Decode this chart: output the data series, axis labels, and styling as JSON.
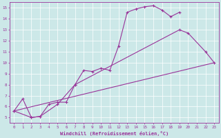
{
  "xlabel": "Windchill (Refroidissement éolien,°C)",
  "background_color": "#cce8e8",
  "line_color": "#993399",
  "grid_color": "#ffffff",
  "xlim": [
    -0.5,
    23.5
  ],
  "ylim": [
    4.5,
    15.5
  ],
  "xticks": [
    0,
    1,
    2,
    3,
    4,
    5,
    6,
    7,
    8,
    9,
    10,
    11,
    12,
    13,
    14,
    15,
    16,
    17,
    18,
    19,
    20,
    21,
    22,
    23
  ],
  "yticks": [
    5,
    6,
    7,
    8,
    9,
    10,
    11,
    12,
    13,
    14,
    15
  ],
  "line1_x": [
    0,
    1,
    2,
    3,
    4,
    5,
    6,
    7,
    8,
    9,
    10,
    11,
    12,
    13,
    14,
    15,
    16,
    17,
    18,
    19
  ],
  "line1_y": [
    5.6,
    6.7,
    5.0,
    5.1,
    6.2,
    6.4,
    6.4,
    8.0,
    9.3,
    9.2,
    9.5,
    9.3,
    11.5,
    14.6,
    14.9,
    15.1,
    15.2,
    14.8,
    14.2,
    14.6
  ],
  "line2_x": [
    0,
    2,
    3,
    5,
    7,
    19,
    20,
    22,
    23
  ],
  "line2_y": [
    5.6,
    5.0,
    5.1,
    6.2,
    8.0,
    13.0,
    12.7,
    11.0,
    10.0
  ],
  "line3_x": [
    0,
    23
  ],
  "line3_y": [
    5.6,
    10.0
  ]
}
